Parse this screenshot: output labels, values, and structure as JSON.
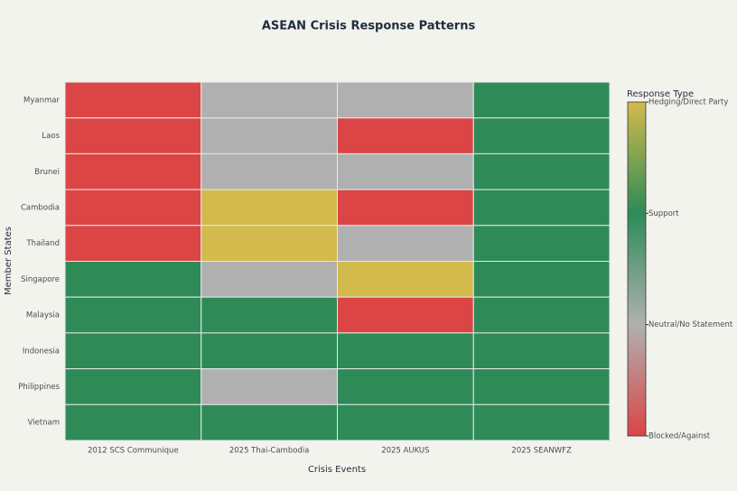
{
  "chart_data": {
    "type": "heatmap",
    "title": "ASEAN Crisis Response Patterns",
    "x_label": "Crisis Events",
    "y_label": "Member States",
    "x": [
      "2012 SCS Communique",
      "2025 Thai-Cambodia",
      "2025 AUKUS",
      "2025 SEANWFZ"
    ],
    "y": [
      "Myanmar",
      "Laos",
      "Brunei",
      "Cambodia",
      "Thailand",
      "Singapore",
      "Malaysia",
      "Indonesia",
      "Philippines",
      "Vietnam"
    ],
    "z": [
      [
        0,
        1,
        1,
        2
      ],
      [
        0,
        1,
        0,
        2
      ],
      [
        0,
        1,
        1,
        2
      ],
      [
        0,
        3,
        0,
        2
      ],
      [
        0,
        3,
        1,
        2
      ],
      [
        2,
        1,
        3,
        2
      ],
      [
        2,
        2,
        0,
        2
      ],
      [
        2,
        2,
        2,
        2
      ],
      [
        2,
        1,
        2,
        2
      ],
      [
        2,
        2,
        2,
        2
      ]
    ],
    "colorscale": [
      [
        0,
        "#db4545"
      ],
      [
        1,
        "#b0b0b0"
      ],
      [
        2,
        "#2e8b57"
      ],
      [
        3,
        "#d2ba4c"
      ]
    ],
    "colorbar_title": "Response Type",
    "zlim": [
      0,
      3
    ],
    "zticks": [
      {
        "value": 0,
        "label": "Blocked/Against"
      },
      {
        "value": 1,
        "label": "Neutral/No Statement"
      },
      {
        "value": 2,
        "label": "Support"
      },
      {
        "value": 3,
        "label": "Hedging/Direct Party"
      }
    ]
  }
}
